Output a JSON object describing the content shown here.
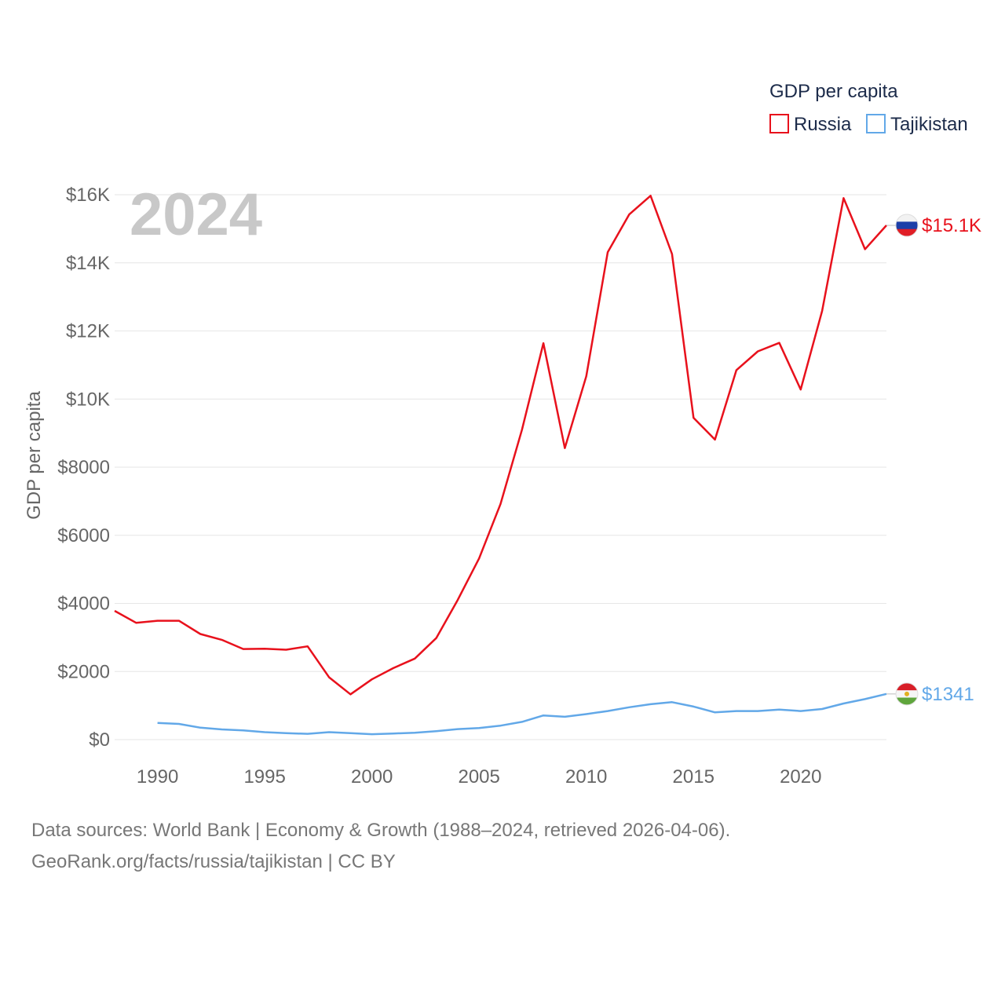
{
  "chart_data": {
    "type": "line",
    "year_label": "2024",
    "ylabel": "GDP per capita",
    "xlabel": "",
    "legend": {
      "title": "GDP per capita",
      "position": "top-right",
      "entries": [
        "Russia",
        "Tajikistan"
      ]
    },
    "xlim": [
      1988,
      2024
    ],
    "ylim": [
      0,
      16000
    ],
    "x_ticks": [
      {
        "value": 1990,
        "label": "1990"
      },
      {
        "value": 1995,
        "label": "1995"
      },
      {
        "value": 2000,
        "label": "2000"
      },
      {
        "value": 2005,
        "label": "2005"
      },
      {
        "value": 2010,
        "label": "2010"
      },
      {
        "value": 2015,
        "label": "2015"
      },
      {
        "value": 2020,
        "label": "2020"
      }
    ],
    "y_ticks": [
      {
        "value": 0,
        "label": "$0"
      },
      {
        "value": 2000,
        "label": "$2000"
      },
      {
        "value": 4000,
        "label": "$4000"
      },
      {
        "value": 6000,
        "label": "$6000"
      },
      {
        "value": 8000,
        "label": "$8000"
      },
      {
        "value": 10000,
        "label": "$10K"
      },
      {
        "value": 12000,
        "label": "$12K"
      },
      {
        "value": 14000,
        "label": "$14K"
      },
      {
        "value": 16000,
        "label": "$16K"
      }
    ],
    "grid": true,
    "series": [
      {
        "name": "Russia",
        "color": "#e8111c",
        "end_label": "$15.1K",
        "flag": "russia-flag",
        "x": [
          1988,
          1989,
          1990,
          1991,
          1992,
          1993,
          1994,
          1995,
          1996,
          1997,
          1998,
          1999,
          2000,
          2001,
          2002,
          2003,
          2004,
          2005,
          2006,
          2007,
          2008,
          2009,
          2010,
          2011,
          2012,
          2013,
          2014,
          2015,
          2016,
          2017,
          2018,
          2019,
          2020,
          2021,
          2022,
          2023,
          2024
        ],
        "values": [
          3780,
          3430,
          3490,
          3490,
          3100,
          2930,
          2660,
          2670,
          2640,
          2740,
          1830,
          1330,
          1770,
          2100,
          2380,
          2980,
          4100,
          5320,
          6920,
          9100,
          11640,
          8560,
          10670,
          14310,
          15420,
          15970,
          14260,
          9450,
          8810,
          10850,
          11400,
          11650,
          10280,
          12590,
          15900,
          14400,
          15100
        ]
      },
      {
        "name": "Tajikistan",
        "color": "#62a8e8",
        "end_label": "$1341",
        "flag": "tajikistan-flag",
        "x": [
          1990,
          1991,
          1992,
          1993,
          1994,
          1995,
          1996,
          1997,
          1998,
          1999,
          2000,
          2001,
          2002,
          2003,
          2004,
          2005,
          2006,
          2007,
          2008,
          2009,
          2010,
          2011,
          2012,
          2013,
          2014,
          2015,
          2016,
          2017,
          2018,
          2019,
          2020,
          2021,
          2022,
          2023,
          2024
        ],
        "values": [
          490,
          460,
          350,
          300,
          270,
          220,
          190,
          170,
          220,
          190,
          160,
          180,
          200,
          250,
          310,
          340,
          410,
          520,
          710,
          670,
          750,
          840,
          950,
          1040,
          1100,
          970,
          800,
          840,
          840,
          880,
          840,
          900,
          1060,
          1190,
          1341
        ]
      }
    ]
  },
  "source": {
    "line1": "Data sources: World Bank | Economy & Growth (1988–2024, retrieved 2026-04-06).",
    "line2": "GeoRank.org/facts/russia/tajikistan | CC BY"
  }
}
